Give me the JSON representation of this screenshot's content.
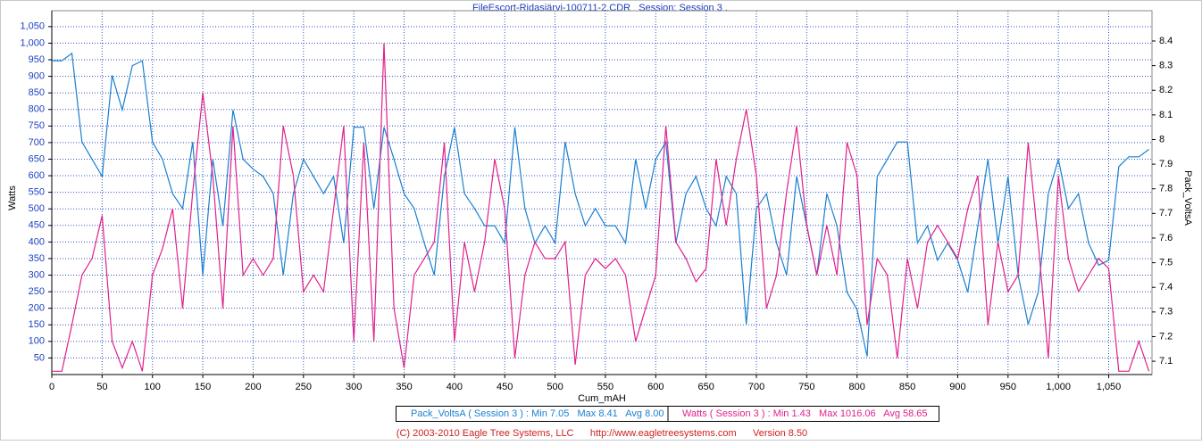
{
  "chart_data": {
    "type": "line",
    "title": "FileEscort-Ridasjärvi-100711-2.CDR   Session: Session 3 .",
    "xlabel": "Cum_mAH",
    "ylabel": "Watts",
    "y2label": "Pack_VoltsA",
    "legend_entries": [
      "Pack_VoltsA ( Session 3 ) : Min 7.05   Max 8.41   Avg 8.00",
      "Watts ( Session 3 ) : Min 1.43   Max 1016.06   Avg 58.65"
    ],
    "footer": "(C) 2003-2010 Eagle Tree Systems, LLC      http://www.eagletreesystems.com      Version 8.50",
    "grid": true,
    "xlim": [
      0,
      1093
    ],
    "xticks": [
      0,
      50,
      100,
      150,
      200,
      250,
      300,
      350,
      400,
      450,
      500,
      550,
      600,
      650,
      700,
      750,
      800,
      850,
      900,
      950,
      {
        "value": 1000,
        "label": "1,000"
      },
      {
        "value": 1050,
        "label": "1,050"
      }
    ],
    "ylim": [
      0,
      1098
    ],
    "yticks": [
      50,
      100,
      150,
      200,
      250,
      300,
      350,
      400,
      450,
      500,
      550,
      600,
      650,
      700,
      750,
      800,
      850,
      900,
      950,
      {
        "value": 1000,
        "label": "1,000"
      },
      {
        "value": 1050,
        "label": "1,050"
      }
    ],
    "y2lim": [
      7.046,
      8.523
    ],
    "y2ticks": [
      7.1,
      7.2,
      7.3,
      7.4,
      7.5,
      7.6,
      7.7,
      7.8,
      7.9,
      8,
      8.1,
      8.2,
      8.3,
      8.4
    ],
    "x": [
      0,
      10,
      20,
      30,
      40,
      50,
      60,
      70,
      80,
      90,
      100,
      110,
      120,
      130,
      140,
      150,
      160,
      170,
      180,
      190,
      200,
      210,
      220,
      230,
      240,
      250,
      260,
      270,
      280,
      290,
      300,
      310,
      320,
      330,
      340,
      350,
      360,
      370,
      380,
      390,
      400,
      410,
      420,
      430,
      440,
      450,
      460,
      470,
      480,
      490,
      500,
      510,
      520,
      530,
      540,
      550,
      560,
      570,
      580,
      590,
      600,
      610,
      620,
      630,
      640,
      650,
      660,
      670,
      680,
      690,
      700,
      710,
      720,
      730,
      740,
      750,
      760,
      770,
      780,
      790,
      800,
      810,
      820,
      830,
      840,
      850,
      860,
      870,
      880,
      890,
      900,
      910,
      920,
      930,
      940,
      950,
      960,
      970,
      980,
      990,
      1000,
      1010,
      1020,
      1030,
      1040,
      1050,
      1060,
      1070,
      1080,
      1090
    ],
    "series": [
      {
        "name": "Pack_VoltsA",
        "color": "#1a7fd0",
        "axis": "y2",
        "values": [
          8.32,
          8.32,
          8.35,
          7.99,
          7.92,
          7.85,
          8.26,
          8.12,
          8.3,
          8.32,
          7.99,
          7.92,
          7.78,
          7.72,
          7.99,
          7.45,
          7.92,
          7.65,
          8.12,
          7.92,
          7.88,
          7.85,
          7.78,
          7.45,
          7.78,
          7.92,
          7.85,
          7.78,
          7.85,
          7.58,
          8.05,
          8.05,
          7.72,
          8.05,
          7.92,
          7.78,
          7.72,
          7.58,
          7.45,
          7.85,
          8.05,
          7.78,
          7.72,
          7.65,
          7.65,
          7.58,
          8.05,
          7.72,
          7.58,
          7.65,
          7.58,
          7.99,
          7.78,
          7.65,
          7.72,
          7.65,
          7.65,
          7.58,
          7.92,
          7.72,
          7.92,
          7.99,
          7.58,
          7.78,
          7.85,
          7.72,
          7.65,
          7.85,
          7.78,
          7.25,
          7.72,
          7.78,
          7.58,
          7.45,
          7.85,
          7.65,
          7.45,
          7.78,
          7.65,
          7.38,
          7.31,
          7.12,
          7.85,
          7.92,
          7.99,
          7.99,
          7.58,
          7.65,
          7.51,
          7.58,
          7.51,
          7.38,
          7.65,
          7.92,
          7.58,
          7.85,
          7.45,
          7.25,
          7.38,
          7.78,
          7.92,
          7.72,
          7.78,
          7.58,
          7.49,
          7.51,
          7.89,
          7.93,
          7.93,
          7.96
        ]
      },
      {
        "name": "Watts",
        "color": "#e0208c",
        "values": [
          10,
          10,
          150,
          300,
          350,
          480,
          100,
          20,
          100,
          10,
          300,
          380,
          500,
          200,
          550,
          850,
          600,
          200,
          750,
          300,
          350,
          300,
          350,
          750,
          600,
          250,
          300,
          250,
          500,
          750,
          100,
          700,
          100,
          1000,
          200,
          20,
          300,
          350,
          400,
          700,
          100,
          400,
          250,
          400,
          650,
          500,
          50,
          300,
          400,
          350,
          350,
          400,
          30,
          300,
          350,
          320,
          350,
          300,
          100,
          200,
          300,
          750,
          400,
          350,
          280,
          320,
          650,
          450,
          650,
          800,
          600,
          200,
          300,
          550,
          750,
          450,
          300,
          450,
          300,
          700,
          600,
          150,
          350,
          300,
          50,
          350,
          200,
          400,
          450,
          400,
          350,
          500,
          600,
          150,
          400,
          250,
          300,
          700,
          400,
          50,
          600,
          350,
          250,
          300,
          350,
          320,
          10,
          10,
          100,
          10
        ]
      }
    ]
  }
}
